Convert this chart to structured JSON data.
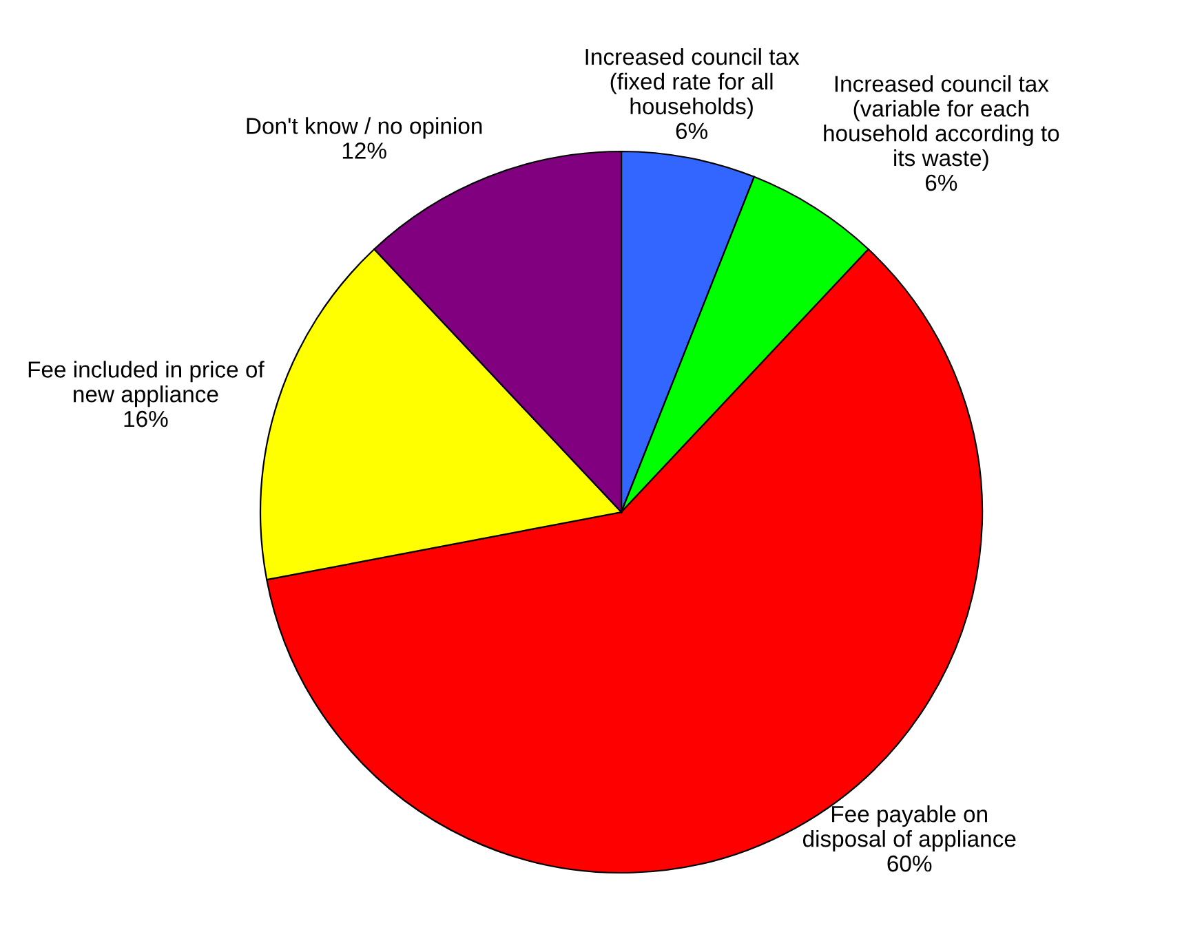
{
  "chart_data": {
    "type": "pie",
    "categories": [
      "Increased council tax\n(fixed rate for all\nhouseholds)",
      "Increased council tax\n(variable for each\nhousehold according to\nits waste)",
      "Fee payable on\ndisposal of appliance",
      "Fee included in price of\nnew appliance",
      "Don't know / no opinion"
    ],
    "values": [
      6,
      6,
      60,
      16,
      12
    ],
    "value_labels": [
      "6%",
      "6%",
      "60%",
      "16%",
      "12%"
    ],
    "colors": [
      "#3366ff",
      "#00ff00",
      "#ff0000",
      "#ffff00",
      "#800080"
    ]
  }
}
